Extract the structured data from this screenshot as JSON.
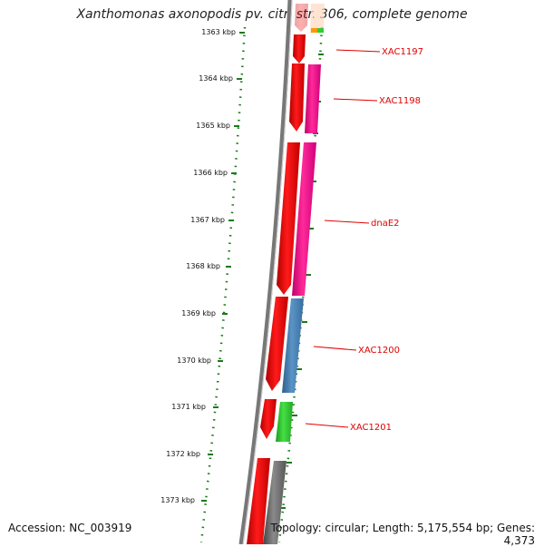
{
  "header": {
    "title": "Xanthomonas axonopodis pv. citri str. 306, complete genome"
  },
  "footer": {
    "accession": "Accession: NC_003919",
    "topology": "Topology: circular; Length: 5,175,554 bp; Genes: 4,373"
  },
  "scale": {
    "ticks": [
      "1363 kbp",
      "1364 kbp",
      "1365 kbp",
      "1366 kbp",
      "1367 kbp",
      "1368 kbp",
      "1369 kbp",
      "1370 kbp",
      "1371 kbp",
      "1372 kbp",
      "1373 kbp"
    ]
  },
  "genes": [
    {
      "label": "XAC1197",
      "color": "#e8007f"
    },
    {
      "label": "XAC1198",
      "color": "#ff1493"
    },
    {
      "label": "dnaE2",
      "color": "#ff3399"
    },
    {
      "label": "XAC1200",
      "color": "#4682b4"
    },
    {
      "label": "XAC1201",
      "color": "#32cd32"
    }
  ],
  "colors": {
    "forward_strand": "#ff0000",
    "backbone": "#808080",
    "tick": "#1a7a1a",
    "label": "#e00000"
  }
}
